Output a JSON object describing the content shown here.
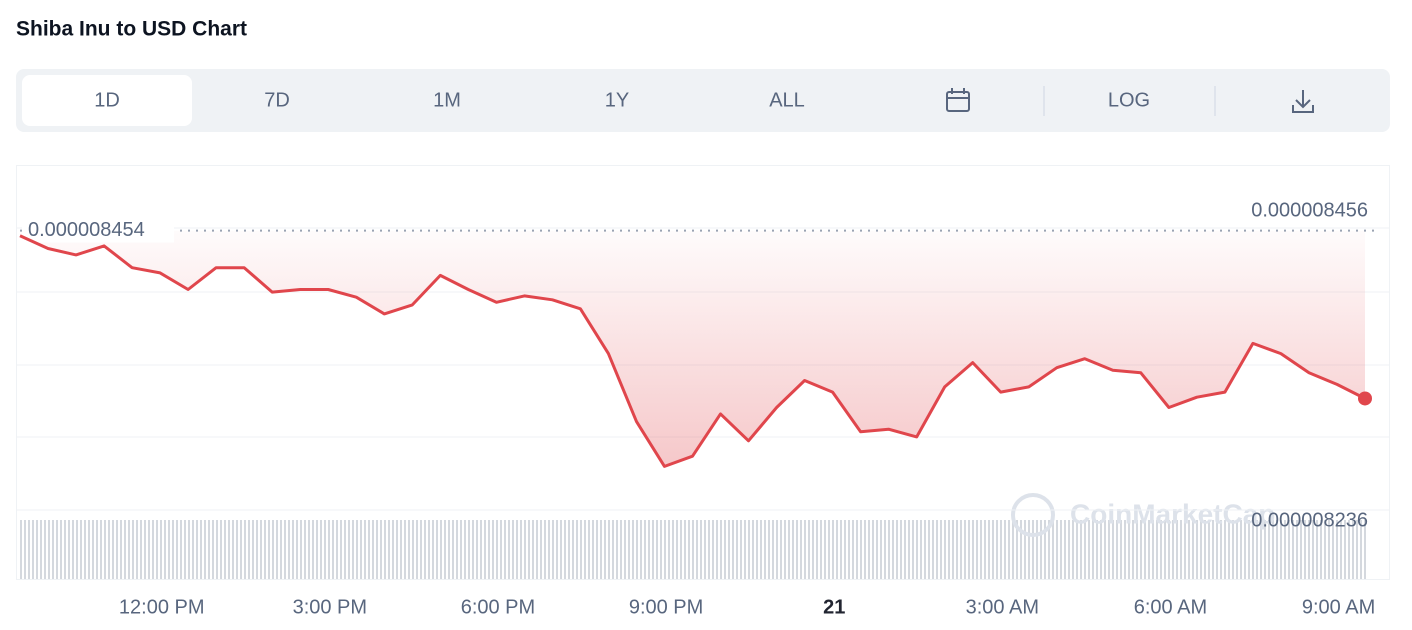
{
  "header": {
    "title": "Shiba Inu to USD Chart"
  },
  "controls": {
    "ranges": [
      "1D",
      "7D",
      "1M",
      "1Y",
      "ALL"
    ],
    "log": "LOG"
  },
  "chart_data": {
    "type": "line",
    "x": [
      9.4,
      9.9,
      10.4,
      10.9,
      11.4,
      11.9,
      12.4,
      12.9,
      13.4,
      13.9,
      14.4,
      14.9,
      15.4,
      15.9,
      16.4,
      16.9,
      17.4,
      17.9,
      18.4,
      18.9,
      19.4,
      19.9,
      20.4,
      20.9,
      21.4,
      21.9,
      22.4,
      22.9,
      23.4,
      23.9,
      24.4,
      24.9,
      25.4,
      25.9,
      26.4,
      26.9,
      27.4,
      27.9,
      28.4,
      28.9,
      29.4,
      29.9,
      30.4,
      30.9,
      31.4,
      31.9,
      32.4,
      32.9,
      33.4
    ],
    "series": [
      {
        "color": "#e0464c",
        "values": [
          8.45e-06,
          8.44e-06,
          8.435e-06,
          8.442e-06,
          8.425e-06,
          8.421e-06,
          8.408e-06,
          8.425e-06,
          8.425e-06,
          8.406e-06,
          8.408e-06,
          8.408e-06,
          8.402e-06,
          8.389e-06,
          8.396e-06,
          8.419e-06,
          8.408e-06,
          8.398e-06,
          8.403e-06,
          8.4e-06,
          8.393e-06,
          8.358e-06,
          8.305e-06,
          8.27e-06,
          8.278e-06,
          8.311e-06,
          8.29e-06,
          8.316e-06,
          8.337e-06,
          8.328e-06,
          8.297e-06,
          8.299e-06,
          8.293e-06,
          8.332e-06,
          8.351e-06,
          8.328e-06,
          8.332e-06,
          8.347e-06,
          8.354e-06,
          8.345e-06,
          8.343e-06,
          8.316e-06,
          8.324e-06,
          8.328e-06,
          8.366e-06,
          8.358e-06,
          8.343e-06,
          8.334e-06,
          8.323e-06
        ]
      }
    ],
    "xlim": [
      9.4,
      33.4
    ],
    "xticks": [
      {
        "value": 12,
        "label": "12:00 PM"
      },
      {
        "value": 15,
        "label": "3:00 PM"
      },
      {
        "value": 18,
        "label": "6:00 PM"
      },
      {
        "value": 21,
        "label": "9:00 PM"
      },
      {
        "value": 24,
        "label": "21"
      },
      {
        "value": 27,
        "label": "3:00 AM"
      },
      {
        "value": 30,
        "label": "6:00 AM"
      },
      {
        "value": 33,
        "label": "9:00 AM"
      }
    ],
    "ylim": [
      8.236e-06,
      8.456e-06
    ],
    "yticks": [
      8.456e-06,
      8.236e-06
    ],
    "reference": 8.454e-06,
    "watermark": "CoinMarketCap"
  }
}
